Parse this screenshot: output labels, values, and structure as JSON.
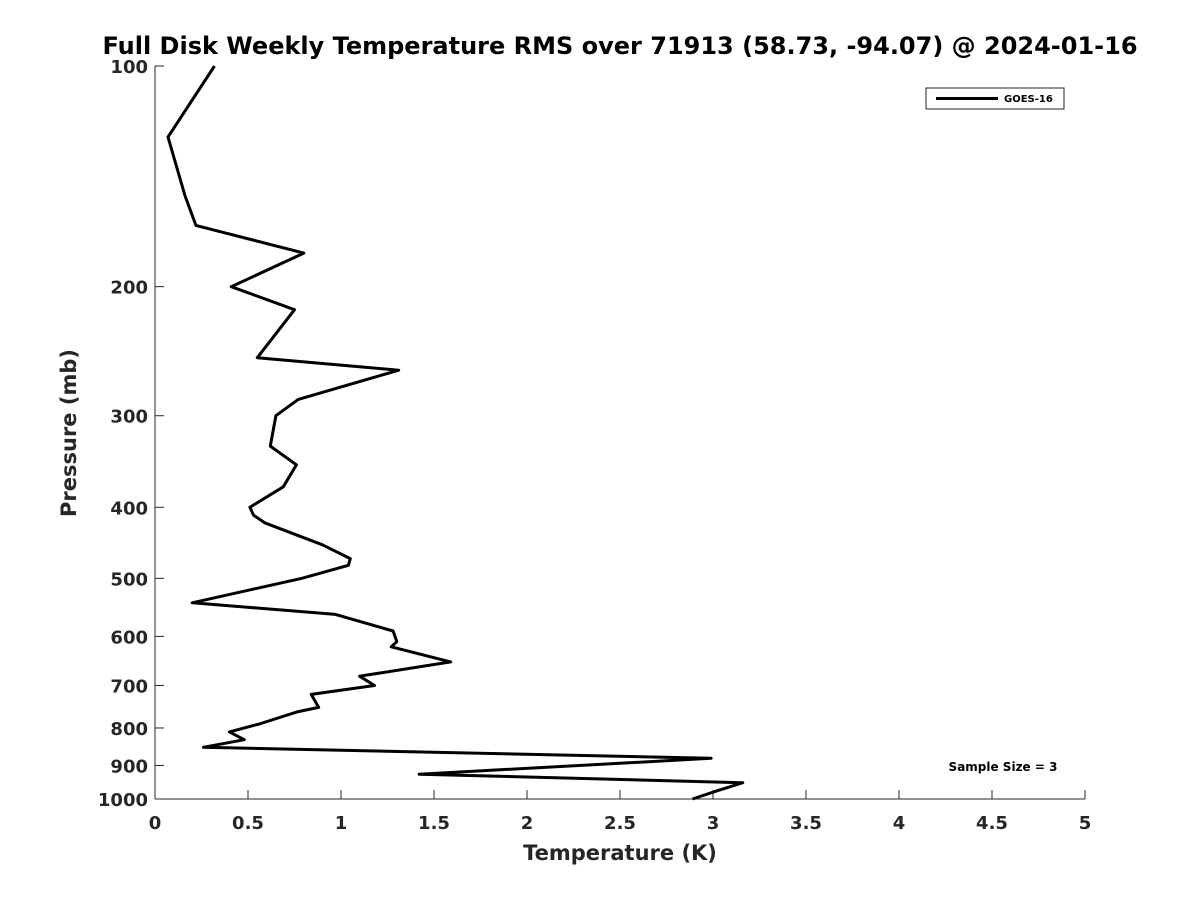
{
  "chart_data": {
    "type": "line",
    "title": "Full Disk Weekly Temperature RMS over 71913 (58.73, -94.07) @ 2024-01-16",
    "xlabel": "Temperature (K)",
    "ylabel": "Pressure (mb)",
    "xlim": [
      0,
      5
    ],
    "ylim": [
      100,
      1000
    ],
    "y_scale": "log",
    "y_reversed": true,
    "x_ticks": [
      "0",
      "0.5",
      "1",
      "1.5",
      "2",
      "2.5",
      "3",
      "3.5",
      "4",
      "4.5",
      "5"
    ],
    "x_tick_values": [
      0,
      0.5,
      1,
      1.5,
      2,
      2.5,
      3,
      3.5,
      4,
      4.5,
      5
    ],
    "y_ticks": [
      "100",
      "200",
      "300",
      "400",
      "500",
      "600",
      "700",
      "800",
      "900",
      "1000"
    ],
    "y_tick_values": [
      100,
      200,
      300,
      400,
      500,
      600,
      700,
      800,
      900,
      1000
    ],
    "grid": false,
    "legend_position": "top-right",
    "annotation": "Sample Size = 3",
    "series": [
      {
        "name": "GOES-16",
        "color": "#000000",
        "points": [
          [
            0.32,
            100
          ],
          [
            0.07,
            125
          ],
          [
            0.16,
            150
          ],
          [
            0.22,
            165
          ],
          [
            0.8,
            180
          ],
          [
            0.41,
            200
          ],
          [
            0.75,
            215
          ],
          [
            0.55,
            250
          ],
          [
            1.31,
            260
          ],
          [
            0.77,
            285
          ],
          [
            0.65,
            300
          ],
          [
            0.62,
            330
          ],
          [
            0.76,
            350
          ],
          [
            0.69,
            375
          ],
          [
            0.51,
            400
          ],
          [
            0.53,
            410
          ],
          [
            0.59,
            420
          ],
          [
            0.9,
            450
          ],
          [
            1.05,
            470
          ],
          [
            1.04,
            480
          ],
          [
            0.79,
            500
          ],
          [
            0.2,
            540
          ],
          [
            0.97,
            560
          ],
          [
            1.28,
            590
          ],
          [
            1.3,
            610
          ],
          [
            1.27,
            620
          ],
          [
            1.59,
            650
          ],
          [
            1.1,
            680
          ],
          [
            1.18,
            700
          ],
          [
            0.84,
            720
          ],
          [
            0.88,
            750
          ],
          [
            0.77,
            760
          ],
          [
            0.56,
            790
          ],
          [
            0.4,
            810
          ],
          [
            0.48,
            830
          ],
          [
            0.26,
            850
          ],
          [
            2.99,
            880
          ],
          [
            1.42,
            925
          ],
          [
            3.16,
            950
          ],
          [
            3.02,
            975
          ],
          [
            2.89,
            1000
          ]
        ]
      }
    ]
  }
}
